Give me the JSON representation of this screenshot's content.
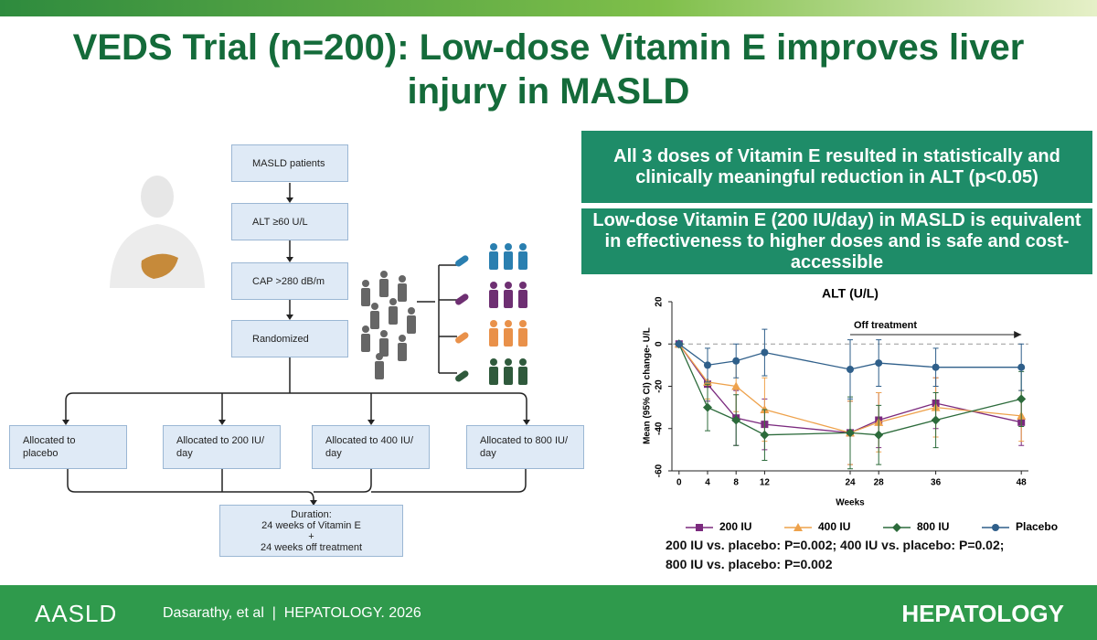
{
  "header": {
    "title": "VEDS Trial (n=200): Low-dose Vitamin E improves liver injury in MASLD"
  },
  "flowchart": {
    "steps": [
      "MASLD patients",
      "ALT ≥60 U/L",
      "CAP >280 dB/m",
      "Randomized"
    ],
    "arms": [
      "Allocated to placebo",
      "Allocated to 200 IU/ day",
      "Allocated to 400 IU/ day",
      "Allocated to 800 IU/ day"
    ],
    "duration": [
      "Duration:",
      "24 weeks of Vitamin E",
      "+",
      "24 weeks off treatment"
    ]
  },
  "findings": [
    "All 3 doses of Vitamin E resulted in statistically and clinically meaningful reduction in ALT (p<0.05)",
    "Low-dose Vitamin E (200 IU/day) in MASLD is equivalent in effectiveness to higher doses and is safe and cost-accessible"
  ],
  "chart_data": {
    "type": "line",
    "title": "ALT (U/L)",
    "x_label": "Weeks",
    "y_label": "Mean (95% CI) change- U/L",
    "x": [
      0,
      4,
      8,
      12,
      24,
      28,
      36,
      48
    ],
    "xlim": [
      -1,
      49
    ],
    "xticks": [
      0,
      4,
      8,
      12,
      24,
      28,
      36,
      48
    ],
    "ylim": [
      -60,
      20
    ],
    "yticks": [
      -60,
      -40,
      -20,
      0,
      20
    ],
    "annotation": {
      "text": "Off treatment",
      "from": 24,
      "to": 48
    },
    "series": [
      {
        "name": "200 IU",
        "color": "#7b2a7e",
        "marker": "square",
        "values": [
          0,
          -19,
          -35,
          -38,
          -42,
          -36,
          -28,
          -37
        ],
        "errors": [
          0,
          8,
          13,
          12,
          15,
          13,
          12,
          11
        ]
      },
      {
        "name": "400 IU",
        "color": "#eea24c",
        "marker": "triangle",
        "values": [
          0,
          -18,
          -20,
          -31,
          -42,
          -37,
          -30,
          -34
        ],
        "errors": [
          0,
          8,
          12,
          15,
          15,
          14,
          14,
          12
        ]
      },
      {
        "name": "800 IU",
        "color": "#2c6b3b",
        "marker": "diamond",
        "values": [
          0,
          -30,
          -36,
          -43,
          -42,
          -43,
          -36,
          -26
        ],
        "errors": [
          0,
          11,
          12,
          12,
          17,
          14,
          13,
          13
        ]
      },
      {
        "name": "Placebo",
        "color": "#2f5f8a",
        "marker": "circle",
        "values": [
          0,
          -10,
          -8,
          -4,
          -12,
          -9,
          -11,
          -11
        ],
        "errors": [
          0,
          8,
          8,
          11,
          14,
          11,
          9,
          11
        ]
      }
    ],
    "comparisons": [
      "200 IU vs. placebo: P=0.002; 400 IU vs. placebo: P=0.02;",
      "800 IU vs. placebo: P=0.002"
    ]
  },
  "footer": {
    "logo": "AASLD",
    "citation": "Dasarathy, et al  |  HEPATOLOGY. 2026",
    "journal": "HEPATOLOGY"
  }
}
